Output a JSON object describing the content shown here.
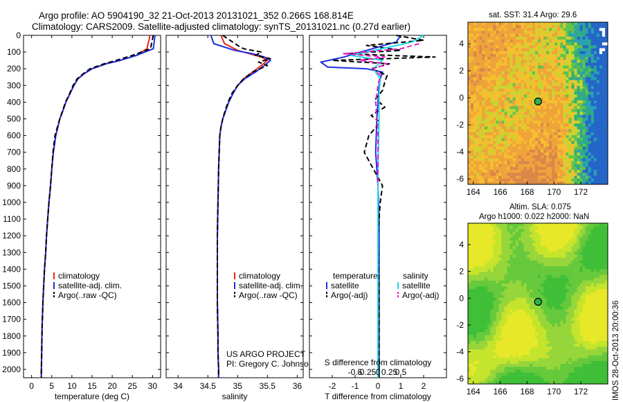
{
  "header": {
    "line1": "Argo profile: AO 5904190_32 21-Oct-2013 20131021_352 0.266S 168.814E",
    "line2": "Climatology: CARS2009. Satellite-adjusted climatology: synTS_20131021.nc (0.27d earlier)"
  },
  "colors": {
    "climatology": "#e8241c",
    "satellite": "#1c2fe0",
    "argo": "#000000",
    "sat_sal": "#22d8e8",
    "argo_sal": "#e81cc8"
  },
  "chart_data": [
    {
      "type": "line",
      "id": "temperature",
      "xlabel": "temperature (deg C)",
      "ylabel": "",
      "xlim": [
        -2,
        32
      ],
      "ylim": [
        0,
        2050
      ],
      "xticks": [
        "0",
        "5",
        "10",
        "15",
        "20",
        "25",
        "30"
      ],
      "xtick_values": [
        0,
        5,
        10,
        15,
        20,
        25,
        30
      ],
      "yticks": [
        "0",
        "100",
        "200",
        "300",
        "400",
        "500",
        "600",
        "700",
        "800",
        "900",
        "1000",
        "1100",
        "1200",
        "1300",
        "1400",
        "1500",
        "1600",
        "1700",
        "1800",
        "1900",
        "2000"
      ],
      "series": [
        {
          "name": "climatology",
          "color": "#e8241c",
          "x": [
            29.3,
            29.2,
            28.6,
            26,
            22,
            18.5,
            15,
            13,
            11.5,
            10.5,
            9.5,
            8.5,
            7.8,
            7,
            6.5,
            6,
            5.4,
            5,
            4.7,
            4.3,
            4,
            3.7,
            3.5,
            3.2,
            3,
            2.8,
            2.6,
            2.5,
            2.4
          ],
          "y": [
            0,
            20,
            80,
            120,
            150,
            170,
            200,
            230,
            260,
            300,
            350,
            400,
            450,
            500,
            550,
            600,
            700,
            800,
            900,
            1000,
            1100,
            1200,
            1300,
            1400,
            1500,
            1600,
            1750,
            1900,
            2050
          ]
        },
        {
          "name": "satellite-adj. clim.",
          "color": "#1c2fe0",
          "x": [
            30.6,
            30.5,
            30.2,
            26,
            22,
            18.5,
            15,
            13,
            11.5,
            10.5,
            9.5,
            8.5,
            7.8,
            7,
            6.5,
            6,
            5.4,
            5,
            4.7,
            4.3,
            4,
            3.7,
            3.5,
            3.2,
            3,
            2.8,
            2.6,
            2.5,
            2.4
          ],
          "y": [
            0,
            20,
            80,
            120,
            150,
            170,
            200,
            230,
            260,
            300,
            350,
            400,
            450,
            500,
            550,
            600,
            700,
            800,
            900,
            1000,
            1100,
            1200,
            1300,
            1400,
            1500,
            1600,
            1750,
            1900,
            2050
          ]
        },
        {
          "name": "Argo(..raw -QC)",
          "color": "#000000",
          "x": [
            30.2,
            30.0,
            29.5,
            25,
            21,
            18,
            14.5,
            12.8,
            11.3,
            10.3,
            9.4,
            8.4,
            7.7,
            7,
            6.4,
            5.8,
            5.3,
            5,
            4.7,
            4.3,
            4,
            3.7,
            3.5,
            3.2,
            3,
            2.8,
            2.6,
            2.5,
            2.4
          ],
          "y": [
            0,
            20,
            80,
            120,
            150,
            170,
            200,
            230,
            260,
            300,
            350,
            400,
            450,
            500,
            550,
            600,
            700,
            800,
            900,
            1000,
            1100,
            1200,
            1300,
            1400,
            1500,
            1600,
            1750,
            1900,
            2050
          ]
        }
      ],
      "legend": [
        "climatology",
        "satellite-adj. clim.",
        "Argo(..raw -QC)"
      ]
    },
    {
      "type": "line",
      "id": "salinity",
      "xlabel": "salinity",
      "xlim": [
        33.8,
        36.1
      ],
      "ylim": [
        0,
        2050
      ],
      "xticks": [
        "34",
        "34.5",
        "35",
        "35.5",
        "36"
      ],
      "xtick_values": [
        34,
        34.5,
        35,
        35.5,
        36
      ],
      "series": [
        {
          "name": "climatology",
          "color": "#e8241c",
          "x": [
            34.72,
            34.78,
            35,
            35.2,
            35.4,
            35.5,
            35.4,
            35.25,
            35.1,
            35,
            34.92,
            34.85,
            34.8,
            34.75,
            34.72,
            34.7,
            34.68,
            34.67,
            34.66,
            34.66,
            34.66,
            34.67,
            34.67,
            34.68,
            34.68
          ],
          "y": [
            0,
            50,
            90,
            110,
            130,
            150,
            180,
            220,
            260,
            300,
            350,
            400,
            450,
            500,
            550,
            600,
            800,
            1000,
            1200,
            1400,
            1600,
            1800,
            1900,
            2000,
            2050
          ]
        },
        {
          "name": "satellite-adj. clim.",
          "color": "#1c2fe0",
          "x": [
            34.55,
            34.6,
            34.95,
            35.25,
            35.45,
            35.55,
            35.45,
            35.3,
            35.12,
            35,
            34.92,
            34.85,
            34.8,
            34.75,
            34.72,
            34.7,
            34.68,
            34.67,
            34.66,
            34.66,
            34.66,
            34.67,
            34.67,
            34.68,
            34.68
          ],
          "y": [
            0,
            50,
            90,
            110,
            130,
            150,
            180,
            220,
            260,
            300,
            350,
            400,
            450,
            500,
            550,
            600,
            800,
            1000,
            1200,
            1400,
            1600,
            1800,
            1900,
            2000,
            2050
          ]
        },
        {
          "name": "Argo(..raw -QC)",
          "color": "#000000",
          "x": [
            34.75,
            35.0,
            35.1,
            35.4,
            35.3,
            35.55,
            35.35,
            35.5,
            35.25,
            35.1,
            35.0,
            34.9,
            34.84,
            34.79,
            34.75,
            34.72,
            34.7,
            34.68,
            34.67,
            34.66,
            34.66,
            34.66,
            34.67,
            34.67,
            34.68,
            34.68
          ],
          "y": [
            0,
            60,
            80,
            100,
            120,
            140,
            160,
            180,
            220,
            260,
            300,
            350,
            400,
            450,
            500,
            550,
            600,
            800,
            1000,
            1200,
            1400,
            1600,
            1800,
            1900,
            2000,
            2050
          ]
        }
      ],
      "legend": [
        "climatology",
        "satellite-adj. clim.",
        "Argo(..raw -QC)"
      ],
      "annotation": [
        "US ARGO PROJECT",
        "PI: Gregory C. Johnson"
      ]
    },
    {
      "type": "line",
      "id": "difference",
      "xlabel": "T difference from climatology",
      "xlabel_top": "S difference from climatology",
      "xlim": [
        -3,
        3
      ],
      "ylim": [
        0,
        2050
      ],
      "xticks": [
        "-2",
        "-1",
        "0",
        "1",
        "2"
      ],
      "xtick_values": [
        -2,
        -1,
        0,
        1,
        2
      ],
      "sticks": [
        "-0.5",
        "-0.25",
        "0",
        "0.25",
        "0.5"
      ],
      "stick_values": [
        -0.5,
        -0.25,
        0,
        0.25,
        0.5
      ],
      "series": [
        {
          "name": "satellite (temperature)",
          "color": "#1c2fe0",
          "x": [
            1.0,
            0.8,
            -0.5,
            -1.5,
            -2.5,
            -2.2,
            -0.5,
            0.2,
            0.1,
            0.05,
            0,
            -0.05,
            -0.1,
            0,
            0.05,
            0.05,
            0.05,
            0.05,
            0.05
          ],
          "y": [
            0,
            40,
            90,
            130,
            160,
            190,
            200,
            220,
            260,
            300,
            400,
            500,
            700,
            900,
            1100,
            1300,
            1600,
            1900,
            2050
          ]
        },
        {
          "name": "Argo(-adj) (temperature)",
          "color": "#000000",
          "x": [
            0.8,
            2.0,
            -0.5,
            1.0,
            -1.5,
            2.5,
            -2.0,
            0.5,
            -0.3,
            0.4,
            0.3,
            0.2,
            -0.1,
            0.3,
            -0.3,
            0.1,
            -0.4,
            -0.6,
            -0.2,
            0.2,
            0.1,
            0,
            0.05,
            0.05,
            0.05
          ],
          "y": [
            0,
            30,
            60,
            90,
            110,
            130,
            150,
            170,
            200,
            240,
            280,
            330,
            380,
            430,
            480,
            520,
            600,
            700,
            800,
            900,
            1000,
            1200,
            1500,
            1800,
            2050
          ]
        },
        {
          "name": "satellite (salinity)",
          "color": "#22d8e8",
          "x": [
            2.0,
            1.5,
            0.5,
            -0.5,
            -1.2,
            0.2,
            -0.2,
            0.1,
            0.05,
            0.05,
            0,
            0,
            0
          ],
          "y": [
            0,
            40,
            70,
            100,
            120,
            150,
            200,
            260,
            350,
            500,
            800,
            1400,
            2050
          ]
        },
        {
          "name": "Argo(-adj) (salinity)",
          "color": "#e81cc8",
          "x": [
            1.8,
            1.0,
            -1.5,
            0.3,
            -0.8,
            0.4,
            -0.2,
            0.1,
            0,
            -0.1,
            0,
            0,
            0
          ],
          "y": [
            50,
            80,
            110,
            130,
            150,
            170,
            200,
            240,
            300,
            400,
            600,
            800,
            900
          ]
        }
      ],
      "legend_temperature_title": "temperature",
      "legend_salinity_title": "salinity",
      "legend": [
        "satellite",
        "Argo(-adj)",
        "satellite",
        "Argo(-adj)"
      ]
    }
  ],
  "maps": {
    "sst": {
      "title": "sat. SST: 31.4  Argo: 29.6",
      "xticks": [
        "164",
        "166",
        "168",
        "170",
        "172"
      ],
      "yticks": [
        "4",
        "2",
        "0",
        "-2",
        "-4",
        "-6"
      ],
      "xtick_values": [
        164,
        166,
        168,
        170,
        172
      ],
      "ytick_values": [
        4,
        2,
        0,
        -2,
        -4,
        -6
      ],
      "xlim": [
        163.6,
        174.0
      ],
      "ylim": [
        -6.4,
        5.6
      ],
      "point": [
        168.814,
        -0.266
      ]
    },
    "sla": {
      "title1": "Altim. SLA: 0.075",
      "title2": "Argo h1000: 0.022  h2000: NaN",
      "xticks": [
        "164",
        "166",
        "168",
        "170",
        "172"
      ],
      "yticks": [
        "4",
        "2",
        "0",
        "-2",
        "-4",
        "-6"
      ],
      "xtick_values": [
        164,
        166,
        168,
        170,
        172
      ],
      "ytick_values": [
        4,
        2,
        0,
        -2,
        -4,
        -6
      ],
      "xlim": [
        163.6,
        174.0
      ],
      "ylim": [
        -6.4,
        5.6
      ],
      "point": [
        168.814,
        -0.266
      ]
    }
  },
  "footer": {
    "stamp": "IMOS 28-Oct-2013 20:00:36"
  }
}
